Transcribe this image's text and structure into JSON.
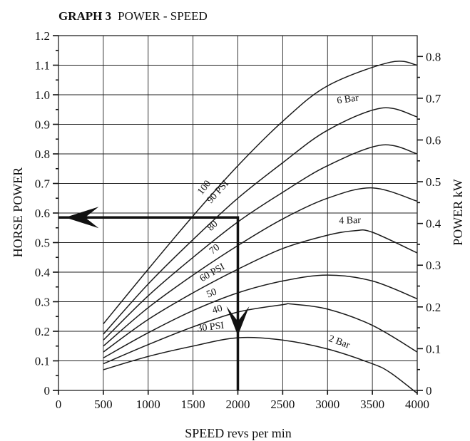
{
  "chart_data": {
    "type": "line",
    "title_bold": "GRAPH 3",
    "title_rest": "POWER - SPEED",
    "xlabel": "SPEED revs per min",
    "ylabel": "HORSE POWER",
    "y2label": "POWER kW",
    "xlim": [
      0,
      4000
    ],
    "ylim": [
      0,
      1.2
    ],
    "y2lim": [
      0,
      0.85
    ],
    "x_ticks": [
      0,
      500,
      1000,
      1500,
      2000,
      2500,
      3000,
      3500,
      4000
    ],
    "x_tick_labels": [
      "0",
      "500",
      "1000",
      "1500",
      "2000",
      "2500",
      "3000",
      "3500",
      "4000"
    ],
    "y_ticks": [
      0,
      0.1,
      0.2,
      0.3,
      0.4,
      0.5,
      0.6,
      0.7,
      0.8,
      0.9,
      1.0,
      1.1,
      1.2
    ],
    "y_tick_labels": [
      "0",
      "0.1",
      "0.2",
      "0.3",
      "0.4",
      "0.5",
      "0.6",
      "0.7",
      "0.8",
      "0.9",
      "1.0",
      "1.1",
      "1.2"
    ],
    "y2_ticks": [
      0,
      0.1,
      0.2,
      0.3,
      0.4,
      0.5,
      0.6,
      0.7,
      0.8
    ],
    "y2_tick_labels": [
      "0",
      "0.1",
      "0.2",
      "0.3",
      "0.4",
      "0.5",
      "0.6",
      "0.7",
      "0.8"
    ],
    "grid": true,
    "series": [
      {
        "x": [
          500,
          1000,
          1500,
          2000,
          2500,
          3000,
          3500,
          3700,
          4000
        ],
        "values": [
          0.07,
          0.115,
          0.15,
          0.178,
          0.17,
          0.14,
          0.09,
          0.06,
          -0.01
        ]
      },
      {
        "x": [
          500,
          1000,
          1500,
          2000,
          2500,
          2600,
          3000,
          3500,
          4000
        ],
        "values": [
          0.09,
          0.155,
          0.215,
          0.265,
          0.29,
          0.292,
          0.275,
          0.22,
          0.13
        ]
      },
      {
        "x": [
          500,
          1000,
          1500,
          2000,
          2500,
          3000,
          3500,
          4000
        ],
        "values": [
          0.11,
          0.195,
          0.27,
          0.33,
          0.37,
          0.39,
          0.37,
          0.31
        ]
      },
      {
        "x": [
          500,
          1000,
          1500,
          2000,
          2500,
          3000,
          3300,
          3500,
          4000
        ],
        "values": [
          0.13,
          0.24,
          0.33,
          0.41,
          0.48,
          0.525,
          0.54,
          0.535,
          0.465
        ]
      },
      {
        "x": [
          500,
          1000,
          1500,
          2000,
          2500,
          3000,
          3500,
          4000
        ],
        "values": [
          0.15,
          0.28,
          0.39,
          0.49,
          0.58,
          0.65,
          0.685,
          0.64
        ]
      },
      {
        "x": [
          500,
          1000,
          1500,
          2000,
          2500,
          3000,
          3600,
          4000
        ],
        "values": [
          0.17,
          0.32,
          0.45,
          0.57,
          0.67,
          0.76,
          0.83,
          0.8
        ]
      },
      {
        "x": [
          500,
          1000,
          1500,
          2000,
          2500,
          3000,
          3600,
          4000
        ],
        "values": [
          0.19,
          0.36,
          0.51,
          0.65,
          0.77,
          0.88,
          0.955,
          0.925
        ]
      },
      {
        "x": [
          500,
          1000,
          1500,
          2000,
          2500,
          3000,
          3700,
          4000
        ],
        "values": [
          0.225,
          0.41,
          0.59,
          0.76,
          0.91,
          1.03,
          1.11,
          1.1
        ]
      }
    ],
    "annotations": [
      {
        "text": "30 PSI",
        "x": 1700,
        "y": 0.205,
        "angle": -7
      },
      {
        "text": "40",
        "x": 1780,
        "y": 0.265,
        "angle": -17
      },
      {
        "text": "50",
        "x": 1720,
        "y": 0.32,
        "angle": -23
      },
      {
        "text": "60 PSI",
        "x": 1730,
        "y": 0.39,
        "angle": -30
      },
      {
        "text": "70",
        "x": 1760,
        "y": 0.47,
        "angle": -38
      },
      {
        "text": "80",
        "x": 1740,
        "y": 0.55,
        "angle": -44
      },
      {
        "text": "90 PSI",
        "x": 1800,
        "y": 0.665,
        "angle": -48
      },
      {
        "text": "100",
        "x": 1650,
        "y": 0.68,
        "angle": -52
      },
      {
        "text": "2 Bar",
        "x": 3120,
        "y": 0.155,
        "angle": 20
      },
      {
        "text": "4 Bar",
        "x": 3250,
        "y": 0.565,
        "angle": -2
      },
      {
        "text": "6 Bar",
        "x": 3230,
        "y": 0.975,
        "angle": -8
      }
    ],
    "example_path": [
      [
        2000,
        0
      ],
      [
        2000,
        0.585
      ],
      [
        0,
        0.585
      ]
    ]
  }
}
